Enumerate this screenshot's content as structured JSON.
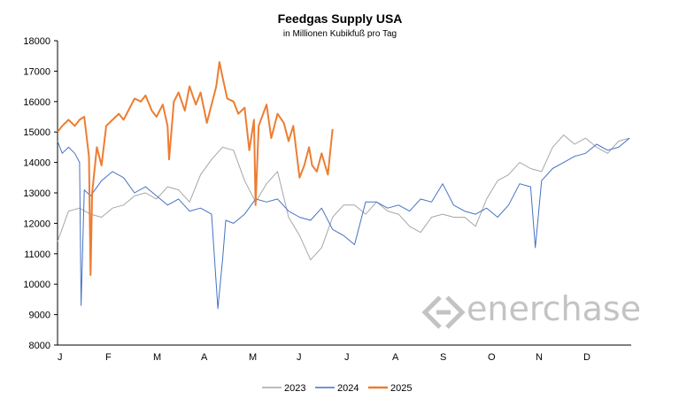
{
  "chart_data": {
    "type": "line",
    "title": "Feedgas Supply USA",
    "subtitle": "in Millionen Kubikfuß pro Tag",
    "xlabel": "",
    "ylabel": "",
    "ylim": [
      8000,
      18000
    ],
    "yticks": [
      8000,
      9000,
      10000,
      11000,
      12000,
      13000,
      14000,
      15000,
      16000,
      17000,
      18000
    ],
    "xlim": [
      1,
      366
    ],
    "x_unit": "day of year",
    "month_labels": [
      "J",
      "F",
      "M",
      "A",
      "M",
      "J",
      "J",
      "A",
      "S",
      "O",
      "N",
      "D"
    ],
    "grid": false,
    "legend_position": "bottom",
    "watermark": "enerchase",
    "series": [
      {
        "name": "2023",
        "color": "#a6a6a6",
        "x": [
          1,
          8,
          15,
          22,
          29,
          36,
          43,
          50,
          57,
          64,
          71,
          78,
          85,
          92,
          99,
          106,
          113,
          120,
          127,
          134,
          141,
          148,
          155,
          162,
          169,
          176,
          183,
          190,
          197,
          204,
          211,
          218,
          225,
          232,
          239,
          246,
          253,
          260,
          267,
          274,
          281,
          288,
          295,
          302,
          309,
          316,
          323,
          330,
          337,
          344,
          351,
          358,
          365
        ],
        "y": [
          11400,
          12400,
          12500,
          12300,
          12200,
          12500,
          12600,
          12900,
          13000,
          12800,
          13200,
          13100,
          12700,
          13600,
          14100,
          14500,
          14400,
          13400,
          12700,
          13300,
          13700,
          12200,
          11600,
          10800,
          11200,
          12200,
          12600,
          12600,
          12300,
          12700,
          12400,
          12300,
          11900,
          11700,
          12200,
          12300,
          12200,
          12200,
          11900,
          12800,
          13400,
          13600,
          14000,
          13800,
          13700,
          14500,
          14900,
          14600,
          14800,
          14500,
          14300,
          14700,
          14800
        ]
      },
      {
        "name": "2024",
        "color": "#4472c4",
        "x": [
          1,
          4,
          8,
          12,
          15,
          16,
          18,
          22,
          29,
          36,
          43,
          50,
          57,
          64,
          71,
          78,
          85,
          92,
          99,
          103,
          106,
          108,
          113,
          120,
          127,
          134,
          141,
          148,
          155,
          162,
          169,
          176,
          183,
          190,
          197,
          204,
          211,
          218,
          225,
          232,
          239,
          246,
          253,
          260,
          267,
          274,
          281,
          288,
          295,
          302,
          305,
          309,
          316,
          323,
          330,
          337,
          344,
          351,
          358,
          365
        ],
        "y": [
          14700,
          14300,
          14500,
          14300,
          14000,
          9300,
          13100,
          12900,
          13400,
          13700,
          13500,
          13000,
          13200,
          12900,
          12600,
          12800,
          12400,
          12500,
          12300,
          9200,
          10800,
          12100,
          12000,
          12300,
          12800,
          12700,
          12800,
          12400,
          12200,
          12100,
          12500,
          11800,
          11600,
          11300,
          12700,
          12700,
          12500,
          12600,
          12400,
          12800,
          12700,
          13300,
          12600,
          12400,
          12300,
          12500,
          12200,
          12600,
          13300,
          13200,
          11200,
          13400,
          13800,
          14000,
          14200,
          14300,
          14600,
          14400,
          14500,
          14800
        ]
      },
      {
        "name": "2025",
        "color": "#ed7d31",
        "x": [
          1,
          4,
          8,
          12,
          15,
          18,
          21,
          22,
          23,
          26,
          29,
          32,
          36,
          40,
          43,
          47,
          50,
          54,
          57,
          61,
          64,
          68,
          71,
          72,
          75,
          78,
          82,
          85,
          89,
          92,
          96,
          99,
          102,
          104,
          106,
          109,
          113,
          116,
          120,
          123,
          126,
          127,
          129,
          134,
          137,
          141,
          145,
          148,
          151,
          155,
          158,
          161,
          163,
          166,
          169,
          173,
          176
        ],
        "y": [
          15000,
          15200,
          15400,
          15200,
          15400,
          15500,
          14200,
          10300,
          13000,
          14500,
          13900,
          15200,
          15400,
          15600,
          15400,
          15800,
          16100,
          16000,
          16200,
          15700,
          15500,
          15900,
          15200,
          14100,
          16000,
          16300,
          15700,
          16500,
          15900,
          16300,
          15300,
          15900,
          16500,
          17300,
          16800,
          16100,
          16000,
          15600,
          15800,
          14400,
          15400,
          12600,
          15200,
          15900,
          14800,
          15600,
          15300,
          14700,
          15200,
          13500,
          13900,
          14500,
          13900,
          13700,
          14300,
          13600,
          15100
        ]
      }
    ]
  }
}
